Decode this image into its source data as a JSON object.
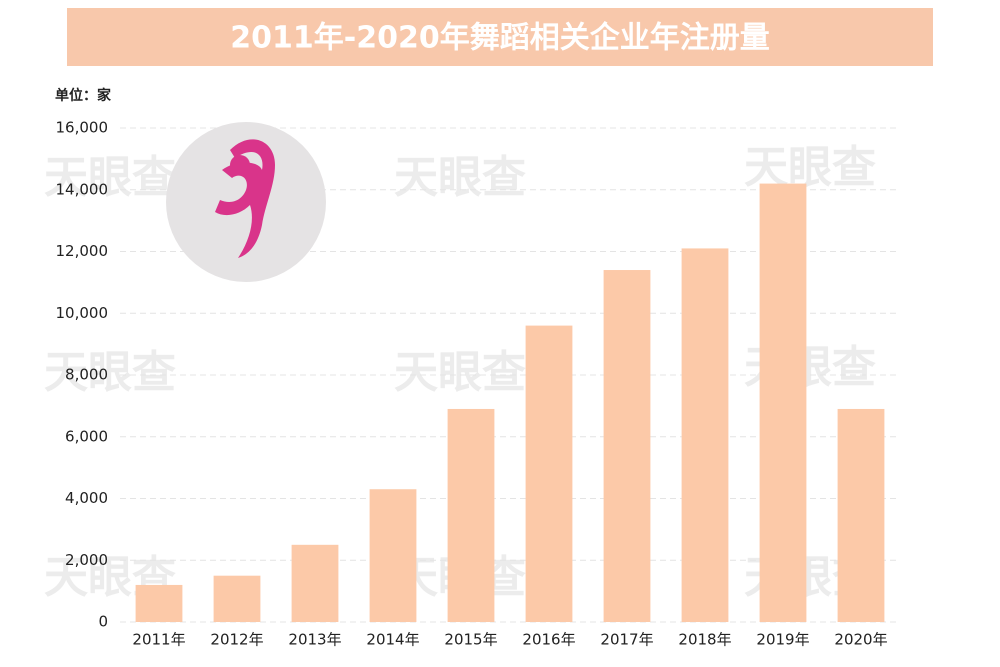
{
  "chart_data": {
    "type": "bar",
    "title": "2011年-2020年舞蹈相关企业年注册量",
    "unit_label": "单位：家",
    "watermark": "天眼查",
    "categories": [
      "2011年",
      "2012年",
      "2013年",
      "2014年",
      "2015年",
      "2016年",
      "2017年",
      "2018年",
      "2019年",
      "2020年"
    ],
    "values": [
      1200,
      1500,
      2500,
      4300,
      6900,
      9600,
      11400,
      12100,
      14200,
      6900
    ],
    "color": "#fcc9a8",
    "ylim": [
      0,
      16000
    ],
    "yticks": [
      0,
      {
        "value": 2000,
        "label": "2,000"
      },
      {
        "value": 4000,
        "label": "4,000"
      },
      {
        "value": 6000,
        "label": "6,000"
      },
      {
        "value": 8000,
        "label": "8,000"
      },
      {
        "value": 10000,
        "label": "10,000"
      },
      {
        "value": 12000,
        "label": "12,000"
      },
      {
        "value": 14000,
        "label": "14,000"
      },
      {
        "value": 16000,
        "label": "16,000"
      }
    ],
    "grid": true
  }
}
